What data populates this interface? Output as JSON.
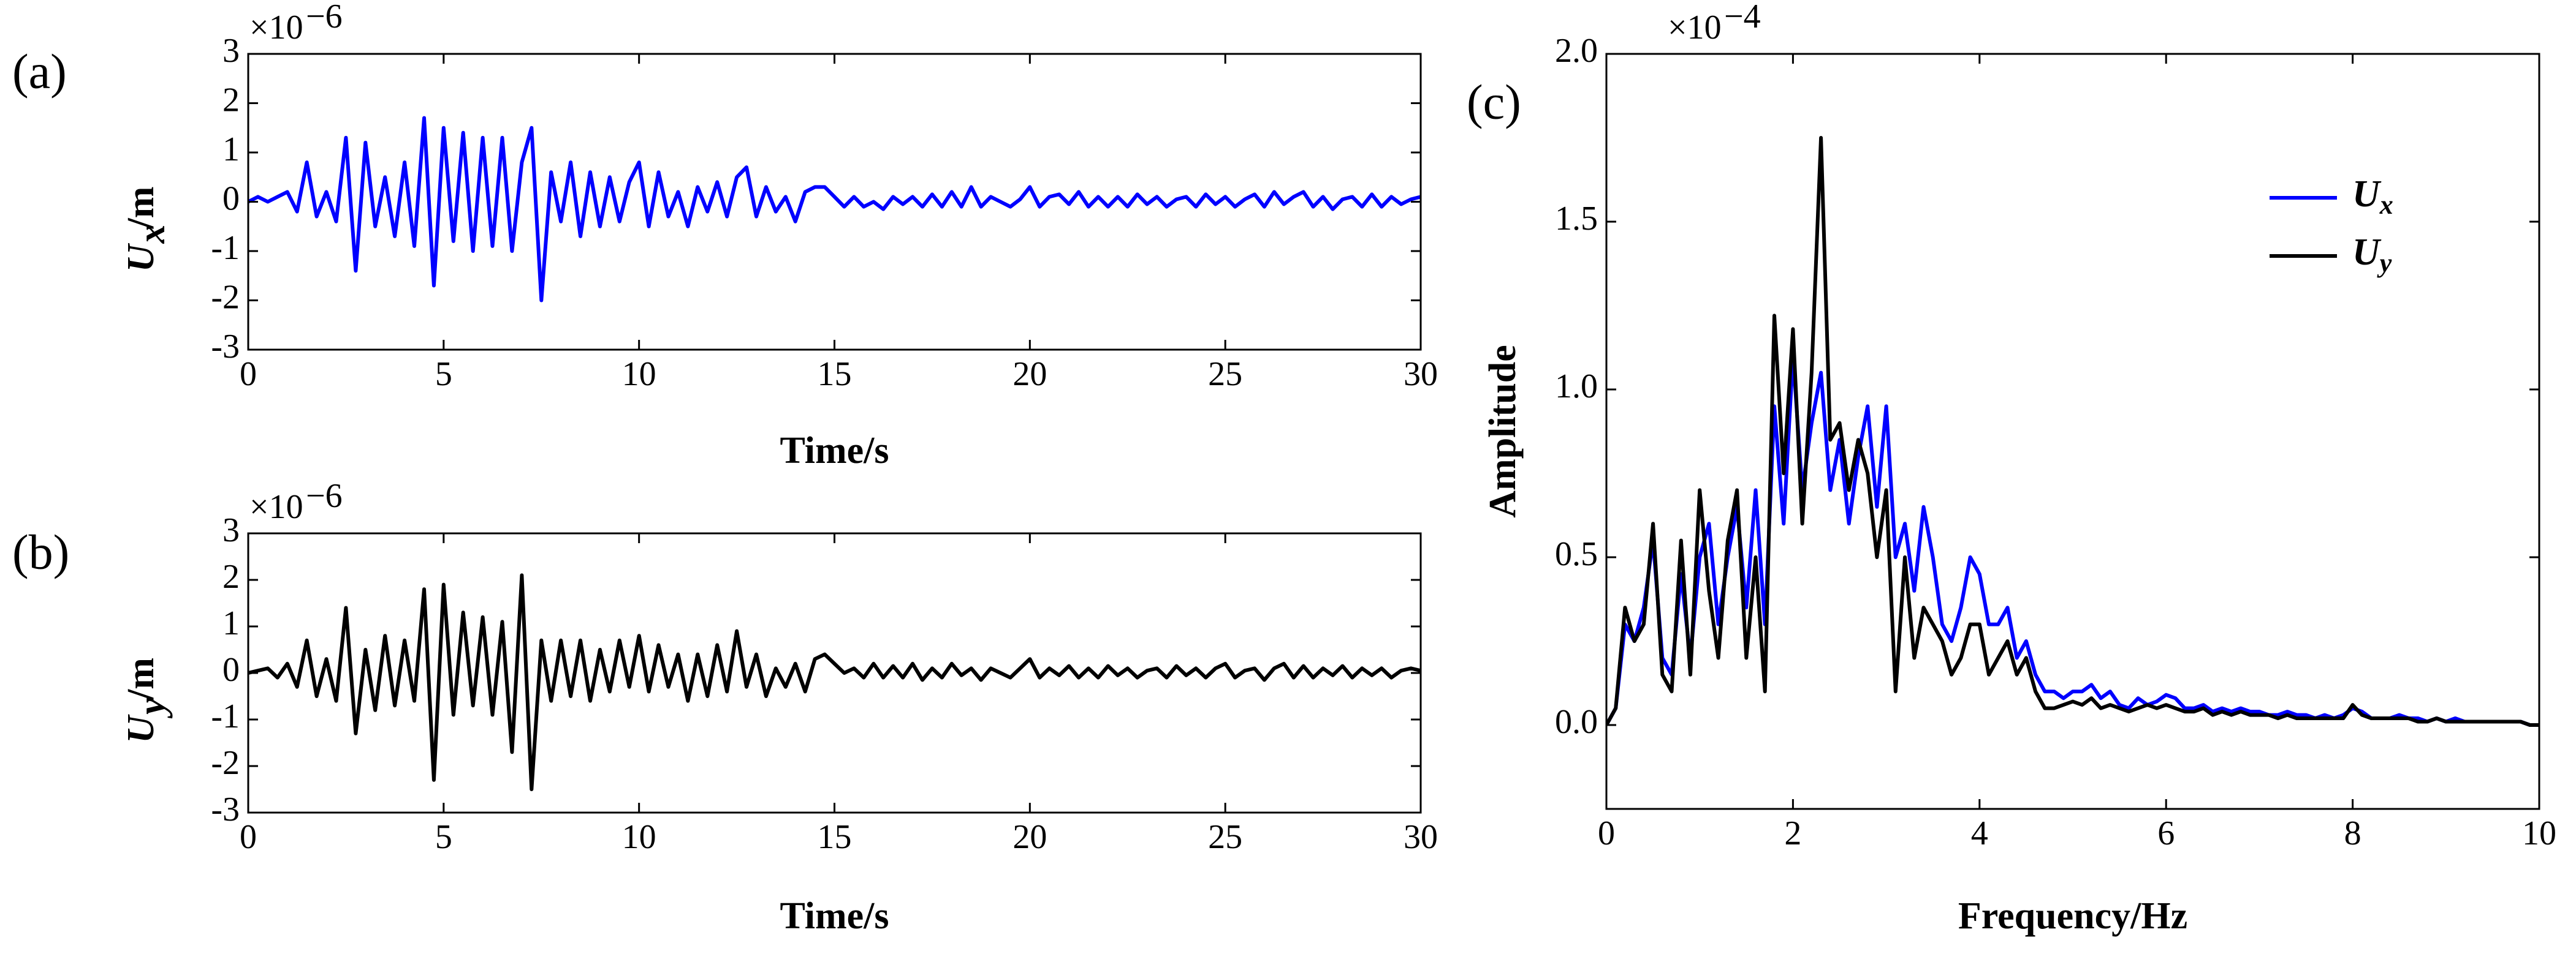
{
  "chart_data": [
    {
      "type": "line",
      "panel_label": "(a)",
      "xlabel": "Time/s",
      "ylabel": {
        "symbol": "U",
        "subscript": "x",
        "unit": "/m"
      },
      "multiplier": {
        "base": "×10",
        "exponent": "−6"
      },
      "xlim": [
        0,
        30
      ],
      "ylim": [
        -3,
        3
      ],
      "xticks": [
        0,
        5,
        10,
        15,
        20,
        25,
        30
      ],
      "yticks": [
        -3,
        -2,
        -1,
        0,
        1,
        2,
        3
      ],
      "x": [
        0,
        0.25,
        0.5,
        0.75,
        1,
        1.25,
        1.5,
        1.75,
        2,
        2.25,
        2.5,
        2.75,
        3,
        3.25,
        3.5,
        3.75,
        4,
        4.25,
        4.5,
        4.75,
        5,
        5.25,
        5.5,
        5.75,
        6,
        6.25,
        6.5,
        6.75,
        7,
        7.25,
        7.5,
        7.75,
        8,
        8.25,
        8.5,
        8.75,
        9,
        9.25,
        9.5,
        9.75,
        10,
        10.25,
        10.5,
        10.75,
        11,
        11.25,
        11.5,
        11.75,
        12,
        12.25,
        12.5,
        12.75,
        13,
        13.25,
        13.5,
        13.75,
        14,
        14.25,
        14.5,
        14.75,
        15,
        15.25,
        15.5,
        15.75,
        16,
        16.25,
        16.5,
        16.75,
        17,
        17.25,
        17.5,
        17.75,
        18,
        18.25,
        18.5,
        18.75,
        19,
        19.25,
        19.5,
        19.75,
        20,
        20.25,
        20.5,
        20.75,
        21,
        21.25,
        21.5,
        21.75,
        22,
        22.25,
        22.5,
        22.75,
        23,
        23.25,
        23.5,
        23.75,
        24,
        24.25,
        24.5,
        24.75,
        25,
        25.25,
        25.5,
        25.75,
        26,
        26.25,
        26.5,
        26.75,
        27,
        27.25,
        27.5,
        27.75,
        28,
        28.25,
        28.5,
        28.75,
        29,
        29.25,
        29.5,
        29.75,
        30
      ],
      "series": [
        {
          "name": "Ux",
          "color": "#0000ff",
          "values": [
            0,
            0.1,
            0,
            0.1,
            0.2,
            -0.2,
            0.8,
            -0.3,
            0.2,
            -0.4,
            1.3,
            -1.4,
            1.2,
            -0.5,
            0.5,
            -0.7,
            0.8,
            -0.9,
            1.7,
            -1.7,
            1.5,
            -0.8,
            1.4,
            -1.0,
            1.3,
            -0.9,
            1.3,
            -1.0,
            0.8,
            1.5,
            -2.0,
            0.6,
            -0.4,
            0.8,
            -0.7,
            0.6,
            -0.5,
            0.5,
            -0.4,
            0.4,
            0.8,
            -0.5,
            0.6,
            -0.3,
            0.2,
            -0.5,
            0.3,
            -0.2,
            0.4,
            -0.3,
            0.5,
            0.7,
            -0.3,
            0.3,
            -0.2,
            0.1,
            -0.4,
            0.2,
            0.3,
            0.3,
            0.1,
            -0.1,
            0.1,
            -0.1,
            0,
            -0.15,
            0.1,
            -0.05,
            0.1,
            -0.1,
            0.15,
            -0.1,
            0.2,
            -0.1,
            0.3,
            -0.1,
            0.1,
            0,
            -0.1,
            0.05,
            0.3,
            -0.1,
            0.1,
            0.15,
            -0.05,
            0.2,
            -0.1,
            0.1,
            -0.1,
            0.1,
            -0.1,
            0.15,
            -0.05,
            0.1,
            -0.1,
            0.05,
            0.1,
            -0.1,
            0.15,
            -0.05,
            0.1,
            -0.1,
            0.05,
            0.15,
            -0.1,
            0.2,
            -0.05,
            0.1,
            0.2,
            -0.1,
            0.1,
            -0.15,
            0.05,
            0.1,
            -0.1,
            0.15,
            -0.1,
            0.1,
            -0.05,
            0.05,
            0.1
          ]
        }
      ]
    },
    {
      "type": "line",
      "panel_label": "(b)",
      "xlabel": "Time/s",
      "ylabel": {
        "symbol": "U",
        "subscript": "y",
        "unit": "/m"
      },
      "multiplier": {
        "base": "×10",
        "exponent": "−6"
      },
      "xlim": [
        0,
        30
      ],
      "ylim": [
        -3,
        3
      ],
      "xticks": [
        0,
        5,
        10,
        15,
        20,
        25,
        30
      ],
      "yticks": [
        -3,
        -2,
        -1,
        0,
        1,
        2,
        3
      ],
      "x": [
        0,
        0.25,
        0.5,
        0.75,
        1,
        1.25,
        1.5,
        1.75,
        2,
        2.25,
        2.5,
        2.75,
        3,
        3.25,
        3.5,
        3.75,
        4,
        4.25,
        4.5,
        4.75,
        5,
        5.25,
        5.5,
        5.75,
        6,
        6.25,
        6.5,
        6.75,
        7,
        7.25,
        7.5,
        7.75,
        8,
        8.25,
        8.5,
        8.75,
        9,
        9.25,
        9.5,
        9.75,
        10,
        10.25,
        10.5,
        10.75,
        11,
        11.25,
        11.5,
        11.75,
        12,
        12.25,
        12.5,
        12.75,
        13,
        13.25,
        13.5,
        13.75,
        14,
        14.25,
        14.5,
        14.75,
        15,
        15.25,
        15.5,
        15.75,
        16,
        16.25,
        16.5,
        16.75,
        17,
        17.25,
        17.5,
        17.75,
        18,
        18.25,
        18.5,
        18.75,
        19,
        19.25,
        19.5,
        19.75,
        20,
        20.25,
        20.5,
        20.75,
        21,
        21.25,
        21.5,
        21.75,
        22,
        22.25,
        22.5,
        22.75,
        23,
        23.25,
        23.5,
        23.75,
        24,
        24.25,
        24.5,
        24.75,
        25,
        25.25,
        25.5,
        25.75,
        26,
        26.25,
        26.5,
        26.75,
        27,
        27.25,
        27.5,
        27.75,
        28,
        28.25,
        28.5,
        28.75,
        29,
        29.25,
        29.5,
        29.75,
        30
      ],
      "series": [
        {
          "name": "Uy",
          "color": "#000000",
          "values": [
            0,
            0.05,
            0.1,
            -0.1,
            0.2,
            -0.3,
            0.7,
            -0.5,
            0.3,
            -0.6,
            1.4,
            -1.3,
            0.5,
            -0.8,
            0.8,
            -0.7,
            0.7,
            -0.6,
            1.8,
            -2.3,
            1.9,
            -0.9,
            1.3,
            -0.7,
            1.2,
            -0.9,
            1.1,
            -1.7,
            2.1,
            -2.5,
            0.7,
            -0.6,
            0.7,
            -0.5,
            0.7,
            -0.6,
            0.5,
            -0.4,
            0.7,
            -0.3,
            0.8,
            -0.4,
            0.6,
            -0.3,
            0.4,
            -0.6,
            0.4,
            -0.5,
            0.6,
            -0.4,
            0.9,
            -0.3,
            0.4,
            -0.5,
            0.1,
            -0.3,
            0.2,
            -0.4,
            0.3,
            0.4,
            0.2,
            0,
            0.1,
            -0.1,
            0.2,
            -0.1,
            0.15,
            -0.1,
            0.2,
            -0.15,
            0.1,
            -0.1,
            0.2,
            -0.05,
            0.1,
            -0.15,
            0.1,
            0,
            -0.1,
            0.1,
            0.3,
            -0.1,
            0.1,
            -0.05,
            0.15,
            -0.1,
            0.1,
            -0.1,
            0.15,
            -0.05,
            0.1,
            -0.1,
            0.05,
            0.1,
            -0.1,
            0.15,
            -0.05,
            0.1,
            -0.1,
            0.1,
            0.2,
            -0.1,
            0.05,
            0.1,
            -0.15,
            0.1,
            0.2,
            -0.1,
            0.15,
            -0.1,
            0.1,
            -0.05,
            0.15,
            -0.1,
            0.1,
            -0.05,
            0.1,
            -0.1,
            0.05,
            0.1,
            0.05
          ]
        }
      ]
    },
    {
      "type": "line",
      "panel_label": "(c)",
      "xlabel": "Frequency/Hz",
      "ylabel": "Amplitude",
      "multiplier": {
        "base": "×10",
        "exponent": "−4"
      },
      "legend": "upper right",
      "xlim": [
        0,
        10
      ],
      "ylim": [
        -0.25,
        2.0
      ],
      "xticks": [
        0,
        2,
        4,
        6,
        8,
        10
      ],
      "yticks": [
        {
          "value": 0,
          "label": "0.0"
        },
        {
          "value": 0.5,
          "label": "0.5"
        },
        {
          "value": 1,
          "label": "1.0"
        },
        {
          "value": 1.5,
          "label": "1.5"
        },
        {
          "value": 2,
          "label": "2.0"
        }
      ],
      "x": [
        0,
        0.1,
        0.2,
        0.3,
        0.4,
        0.5,
        0.6,
        0.7,
        0.8,
        0.9,
        1,
        1.1,
        1.2,
        1.3,
        1.4,
        1.5,
        1.6,
        1.7,
        1.8,
        1.9,
        2,
        2.1,
        2.2,
        2.3,
        2.4,
        2.5,
        2.6,
        2.7,
        2.8,
        2.9,
        3,
        3.1,
        3.2,
        3.3,
        3.4,
        3.5,
        3.6,
        3.7,
        3.8,
        3.9,
        4,
        4.1,
        4.2,
        4.3,
        4.4,
        4.5,
        4.6,
        4.7,
        4.8,
        4.9,
        5,
        5.1,
        5.2,
        5.3,
        5.4,
        5.5,
        5.6,
        5.7,
        5.8,
        5.9,
        6,
        6.1,
        6.2,
        6.3,
        6.4,
        6.5,
        6.6,
        6.7,
        6.8,
        6.9,
        7,
        7.1,
        7.2,
        7.3,
        7.4,
        7.5,
        7.6,
        7.7,
        7.8,
        7.9,
        8,
        8.1,
        8.2,
        8.3,
        8.4,
        8.5,
        8.6,
        8.7,
        8.8,
        8.9,
        9,
        9.1,
        9.2,
        9.3,
        9.4,
        9.5,
        9.6,
        9.7,
        9.8,
        9.9,
        10
      ],
      "series": [
        {
          "name": "Ux",
          "color": "#0000ff",
          "values": [
            0,
            0.05,
            0.3,
            0.25,
            0.35,
            0.55,
            0.2,
            0.15,
            0.45,
            0.2,
            0.5,
            0.6,
            0.3,
            0.5,
            0.65,
            0.35,
            0.7,
            0.3,
            0.95,
            0.6,
            1.1,
            0.7,
            0.9,
            1.05,
            0.7,
            0.85,
            0.6,
            0.8,
            0.95,
            0.65,
            0.95,
            0.5,
            0.6,
            0.4,
            0.65,
            0.5,
            0.3,
            0.25,
            0.35,
            0.5,
            0.45,
            0.3,
            0.3,
            0.35,
            0.2,
            0.25,
            0.15,
            0.1,
            0.1,
            0.08,
            0.1,
            0.1,
            0.12,
            0.08,
            0.1,
            0.06,
            0.05,
            0.08,
            0.06,
            0.07,
            0.09,
            0.08,
            0.05,
            0.05,
            0.06,
            0.04,
            0.05,
            0.04,
            0.05,
            0.04,
            0.04,
            0.03,
            0.03,
            0.04,
            0.03,
            0.03,
            0.02,
            0.03,
            0.02,
            0.03,
            0.05,
            0.04,
            0.02,
            0.02,
            0.02,
            0.03,
            0.02,
            0.02,
            0.01,
            0.02,
            0.01,
            0.02,
            0.01,
            0.01,
            0.01,
            0.01,
            0.01,
            0.01,
            0.01,
            0,
            0
          ]
        },
        {
          "name": "Uy",
          "color": "#000000",
          "values": [
            0,
            0.05,
            0.35,
            0.25,
            0.3,
            0.6,
            0.15,
            0.1,
            0.55,
            0.15,
            0.7,
            0.4,
            0.2,
            0.55,
            0.7,
            0.2,
            0.5,
            0.1,
            1.22,
            0.75,
            1.18,
            0.6,
            1.05,
            1.75,
            0.85,
            0.9,
            0.7,
            0.85,
            0.75,
            0.5,
            0.7,
            0.1,
            0.5,
            0.2,
            0.35,
            0.3,
            0.25,
            0.15,
            0.2,
            0.3,
            0.3,
            0.15,
            0.2,
            0.25,
            0.15,
            0.2,
            0.1,
            0.05,
            0.05,
            0.06,
            0.07,
            0.06,
            0.08,
            0.05,
            0.06,
            0.05,
            0.04,
            0.05,
            0.06,
            0.05,
            0.06,
            0.05,
            0.04,
            0.04,
            0.05,
            0.03,
            0.04,
            0.03,
            0.04,
            0.03,
            0.03,
            0.03,
            0.02,
            0.03,
            0.02,
            0.02,
            0.02,
            0.02,
            0.02,
            0.02,
            0.06,
            0.03,
            0.02,
            0.02,
            0.02,
            0.02,
            0.02,
            0.01,
            0.01,
            0.02,
            0.01,
            0.01,
            0.01,
            0.01,
            0.01,
            0.01,
            0.01,
            0.01,
            0.01,
            0,
            0
          ]
        }
      ]
    }
  ]
}
